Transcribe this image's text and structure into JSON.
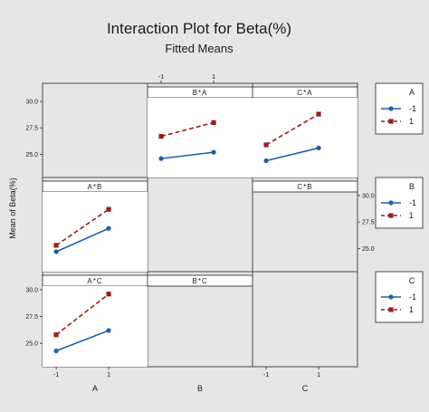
{
  "chart_data": {
    "type": "line",
    "title": "Interaction Plot for Beta(%)",
    "subtitle": "Fitted Means",
    "ylabel": "Mean of Beta(%)",
    "x_levels": [
      "-1",
      "1"
    ],
    "factors": [
      "A",
      "B",
      "C"
    ],
    "y_ticks": [
      "25.0",
      "27.5",
      "30.0"
    ],
    "ylim": [
      23.5,
      30.0
    ],
    "series_colors": {
      "-1": "#1f5fa8",
      "1": "#9b1c1c"
    },
    "panels": [
      {
        "row": "A",
        "col": "B",
        "strip": "B*A",
        "legend": "A",
        "series": [
          {
            "name": "-1",
            "values": [
              24.6,
              25.2
            ]
          },
          {
            "name": "1",
            "values": [
              26.7,
              28.0
            ]
          }
        ]
      },
      {
        "row": "A",
        "col": "C",
        "strip": "C*A",
        "legend": "A",
        "series": [
          {
            "name": "-1",
            "values": [
              24.4,
              25.6
            ]
          },
          {
            "name": "1",
            "values": [
              25.9,
              28.8
            ]
          }
        ]
      },
      {
        "row": "B",
        "col": "A",
        "strip": "A*B",
        "legend": "B",
        "series": [
          {
            "name": "-1",
            "values": [
              24.7,
              26.9
            ]
          },
          {
            "name": "1",
            "values": [
              25.3,
              28.7
            ]
          }
        ]
      },
      {
        "row": "B",
        "col": "C",
        "strip": "C*B",
        "legend": "B",
        "series": []
      },
      {
        "row": "C",
        "col": "A",
        "strip": "A*C",
        "legend": "C",
        "series": [
          {
            "name": "-1",
            "values": [
              24.3,
              26.2
            ]
          },
          {
            "name": "1",
            "values": [
              25.8,
              29.6
            ]
          }
        ]
      },
      {
        "row": "C",
        "col": "B",
        "strip": "B*C",
        "legend": "C",
        "series": []
      }
    ],
    "legends": [
      {
        "title": "A",
        "entries": [
          "-1",
          "1"
        ]
      },
      {
        "title": "B",
        "entries": [
          "-1",
          "1"
        ]
      },
      {
        "title": "C",
        "entries": [
          "-1",
          "1"
        ]
      }
    ]
  }
}
